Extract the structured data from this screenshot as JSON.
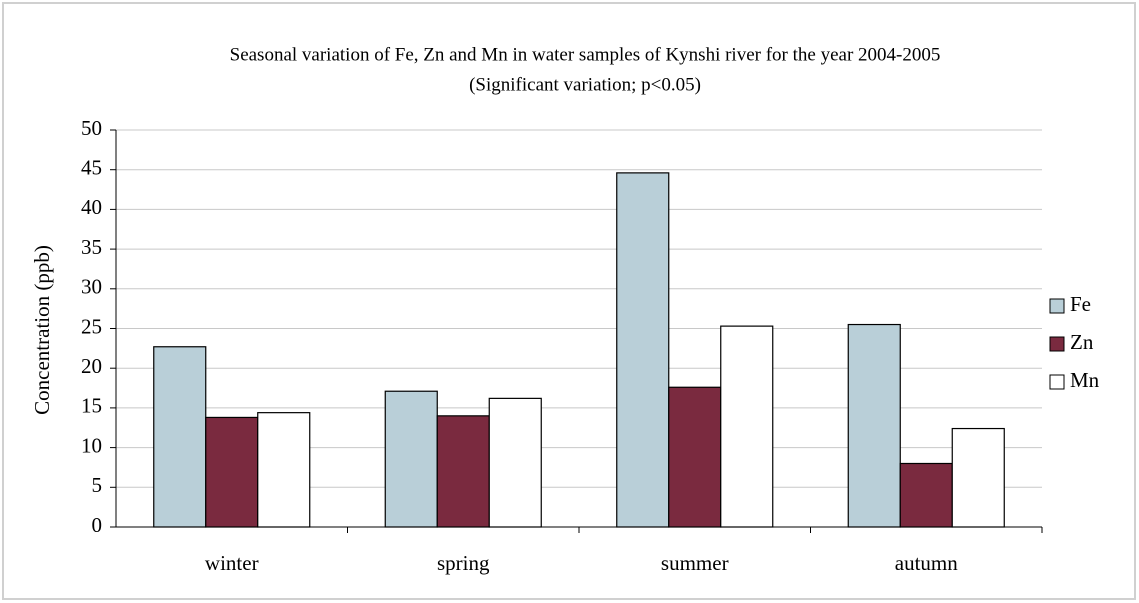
{
  "chart_data": {
    "type": "bar",
    "title": "Seasonal variation of Fe, Zn and Mn in water samples of Kynshi river for the year 2004-2005",
    "subtitle": "(Significant variation; p<0.05)",
    "y_label": "Concentration (ppb)",
    "categories": [
      "winter",
      "spring",
      "summer",
      "autumn"
    ],
    "series": [
      {
        "name": "Fe",
        "color": "#b9cfd8",
        "values": [
          22.7,
          17.1,
          44.6,
          25.5
        ]
      },
      {
        "name": "Zn",
        "color": "#7a2a3f",
        "values": [
          13.8,
          14.0,
          17.6,
          8.0
        ]
      },
      {
        "name": "Mn",
        "color": "#ffffff",
        "values": [
          14.4,
          16.2,
          25.3,
          12.4
        ]
      }
    ],
    "ylim": [
      0,
      50
    ],
    "yticks": [
      0,
      5,
      10,
      15,
      20,
      25,
      30,
      35,
      40,
      45,
      50
    ],
    "grid": true,
    "legend": "right"
  }
}
